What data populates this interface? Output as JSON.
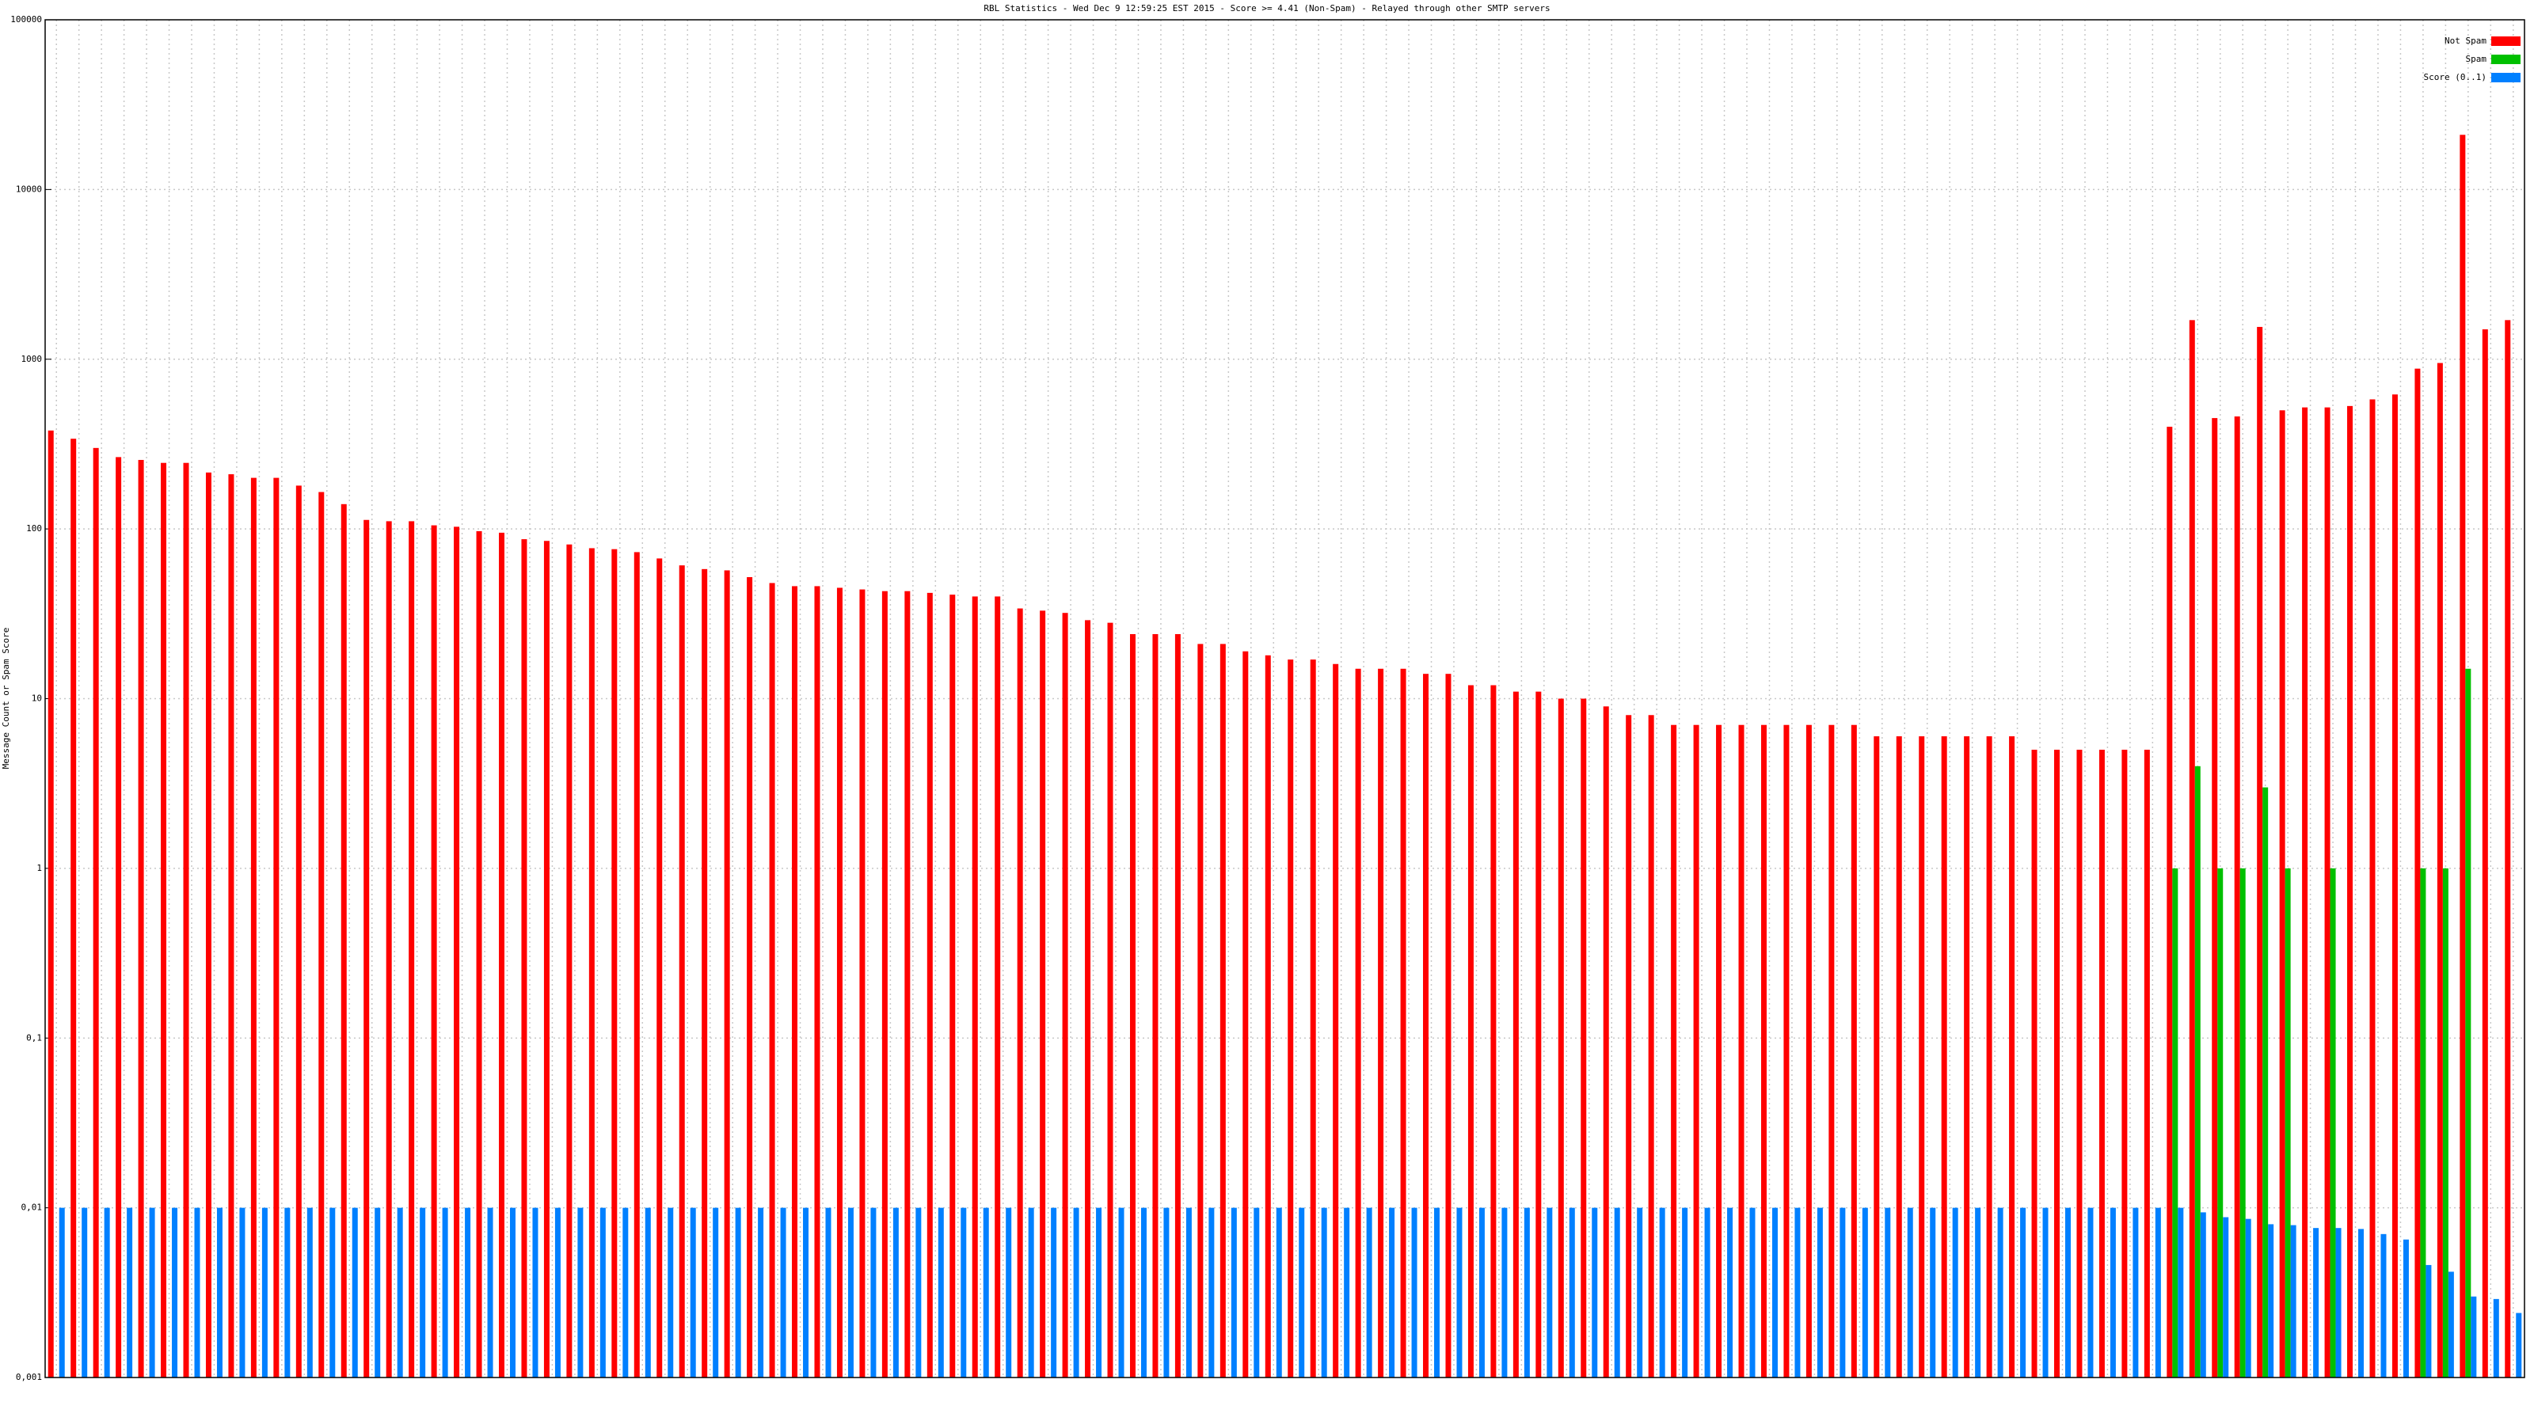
{
  "chart_data": {
    "type": "bar",
    "log_scale": true,
    "grid": true,
    "legend": "top-right",
    "title": "RBL Statistics - Wed Dec  9 12:59:25 EST 2015 - Score >= 4.41 (Non-Spam) - Relayed through other SMTP servers",
    "y_label": "Message Count or Spam Score",
    "ylim": [
      0.001,
      100000
    ],
    "yticks": [
      {
        "value": 0.001,
        "label": "0,001"
      },
      {
        "value": 0.01,
        "label": "0,01"
      },
      {
        "value": 0.1,
        "label": "0,1"
      },
      1,
      10,
      100,
      1000,
      10000,
      100000
    ],
    "categories": [
      null,
      null,
      null,
      null,
      null,
      null,
      null,
      null,
      null,
      null,
      null,
      null,
      null,
      null,
      null,
      null,
      null,
      null,
      null,
      null,
      null,
      null,
      null,
      null,
      null,
      null,
      null,
      null,
      null,
      null,
      null,
      null,
      null,
      null,
      null,
      null,
      null,
      null,
      null,
      null,
      null,
      null,
      null,
      null,
      null,
      null,
      null,
      null,
      null,
      null,
      null,
      null,
      null,
      null,
      null,
      null,
      null,
      null,
      null,
      null,
      null,
      null,
      null,
      null,
      null,
      null,
      null,
      null,
      null,
      null,
      null,
      null,
      null,
      null,
      null,
      null,
      null,
      null,
      null,
      null,
      null,
      null,
      null,
      null,
      null,
      null,
      null,
      null,
      null,
      null,
      null,
      null,
      null,
      null,
      null,
      null,
      null,
      null,
      null,
      null,
      null,
      null,
      null,
      null,
      null,
      null,
      null,
      null,
      null,
      null
    ],
    "series": [
      {
        "name": "Not Spam",
        "color": "#ff0000",
        "values": [
          380,
          340,
          300,
          265,
          255,
          245,
          245,
          215,
          210,
          200,
          200,
          180,
          165,
          140,
          113,
          111,
          111,
          105,
          103,
          97,
          95,
          87,
          85,
          81,
          77,
          76,
          73,
          67,
          61,
          58,
          57,
          52,
          48,
          46,
          46,
          45,
          44,
          43,
          43,
          42,
          41,
          40,
          40,
          34,
          33,
          32,
          29,
          28,
          24,
          24,
          24,
          21,
          21,
          19,
          18,
          17,
          17,
          16,
          15,
          15,
          15,
          14,
          14,
          12,
          12,
          11,
          11,
          10,
          10,
          9,
          8,
          8,
          7,
          7,
          7,
          7,
          7,
          7,
          7,
          7,
          7,
          6,
          6,
          6,
          6,
          6,
          6,
          6,
          5,
          5,
          5,
          5,
          5,
          5,
          400,
          1700,
          450,
          460,
          1550,
          500,
          520,
          520,
          530,
          580,
          620,
          880,
          950,
          21000,
          1500,
          1700
        ]
      },
      {
        "name": "Spam",
        "color": "#00c000",
        "values": [
          0,
          0,
          0,
          0,
          0,
          0,
          0,
          0,
          0,
          0,
          0,
          0,
          0,
          0,
          0,
          0,
          0,
          0,
          0,
          0,
          0,
          0,
          0,
          0,
          0,
          0,
          0,
          0,
          0,
          0,
          0,
          0,
          0,
          0,
          0,
          0,
          0,
          0,
          0,
          0,
          0,
          0,
          0,
          0,
          0,
          0,
          0,
          0,
          0,
          0,
          0,
          0,
          0,
          0,
          0,
          0,
          0,
          0,
          0,
          0,
          0,
          0,
          0,
          0,
          0,
          0,
          0,
          0,
          0,
          0,
          0,
          0,
          0,
          0,
          0,
          0,
          0,
          0,
          0,
          0,
          0,
          0,
          0,
          0,
          0,
          0,
          0,
          0,
          0,
          0,
          0,
          0,
          0,
          0,
          1,
          4,
          1,
          1,
          3,
          1,
          0,
          1,
          0,
          0,
          0,
          1,
          1,
          15,
          0,
          0
        ]
      },
      {
        "name": "Score (0..1)",
        "color": "#0080ff",
        "values": [
          0.01,
          0.01,
          0.01,
          0.01,
          0.01,
          0.01,
          0.01,
          0.01,
          0.01,
          0.01,
          0.01,
          0.01,
          0.01,
          0.01,
          0.01,
          0.01,
          0.01,
          0.01,
          0.01,
          0.01,
          0.01,
          0.01,
          0.01,
          0.01,
          0.01,
          0.01,
          0.01,
          0.01,
          0.01,
          0.01,
          0.01,
          0.01,
          0.01,
          0.01,
          0.01,
          0.01,
          0.01,
          0.01,
          0.01,
          0.01,
          0.01,
          0.01,
          0.01,
          0.01,
          0.01,
          0.01,
          0.01,
          0.01,
          0.01,
          0.01,
          0.01,
          0.01,
          0.01,
          0.01,
          0.01,
          0.01,
          0.01,
          0.01,
          0.01,
          0.01,
          0.01,
          0.01,
          0.01,
          0.01,
          0.01,
          0.01,
          0.01,
          0.01,
          0.01,
          0.01,
          0.01,
          0.01,
          0.01,
          0.01,
          0.01,
          0.01,
          0.01,
          0.01,
          0.01,
          0.01,
          0.01,
          0.01,
          0.01,
          0.01,
          0.01,
          0.01,
          0.01,
          0.01,
          0.01,
          0.01,
          0.01,
          0.01,
          0.01,
          0.01,
          0.01,
          0.0094,
          0.0088,
          0.0086,
          0.008,
          0.0079,
          0.0076,
          0.0076,
          0.0075,
          0.007,
          0.0065,
          0.0046,
          0.0042,
          0.003,
          0.0029,
          0.0024
        ]
      }
    ]
  }
}
